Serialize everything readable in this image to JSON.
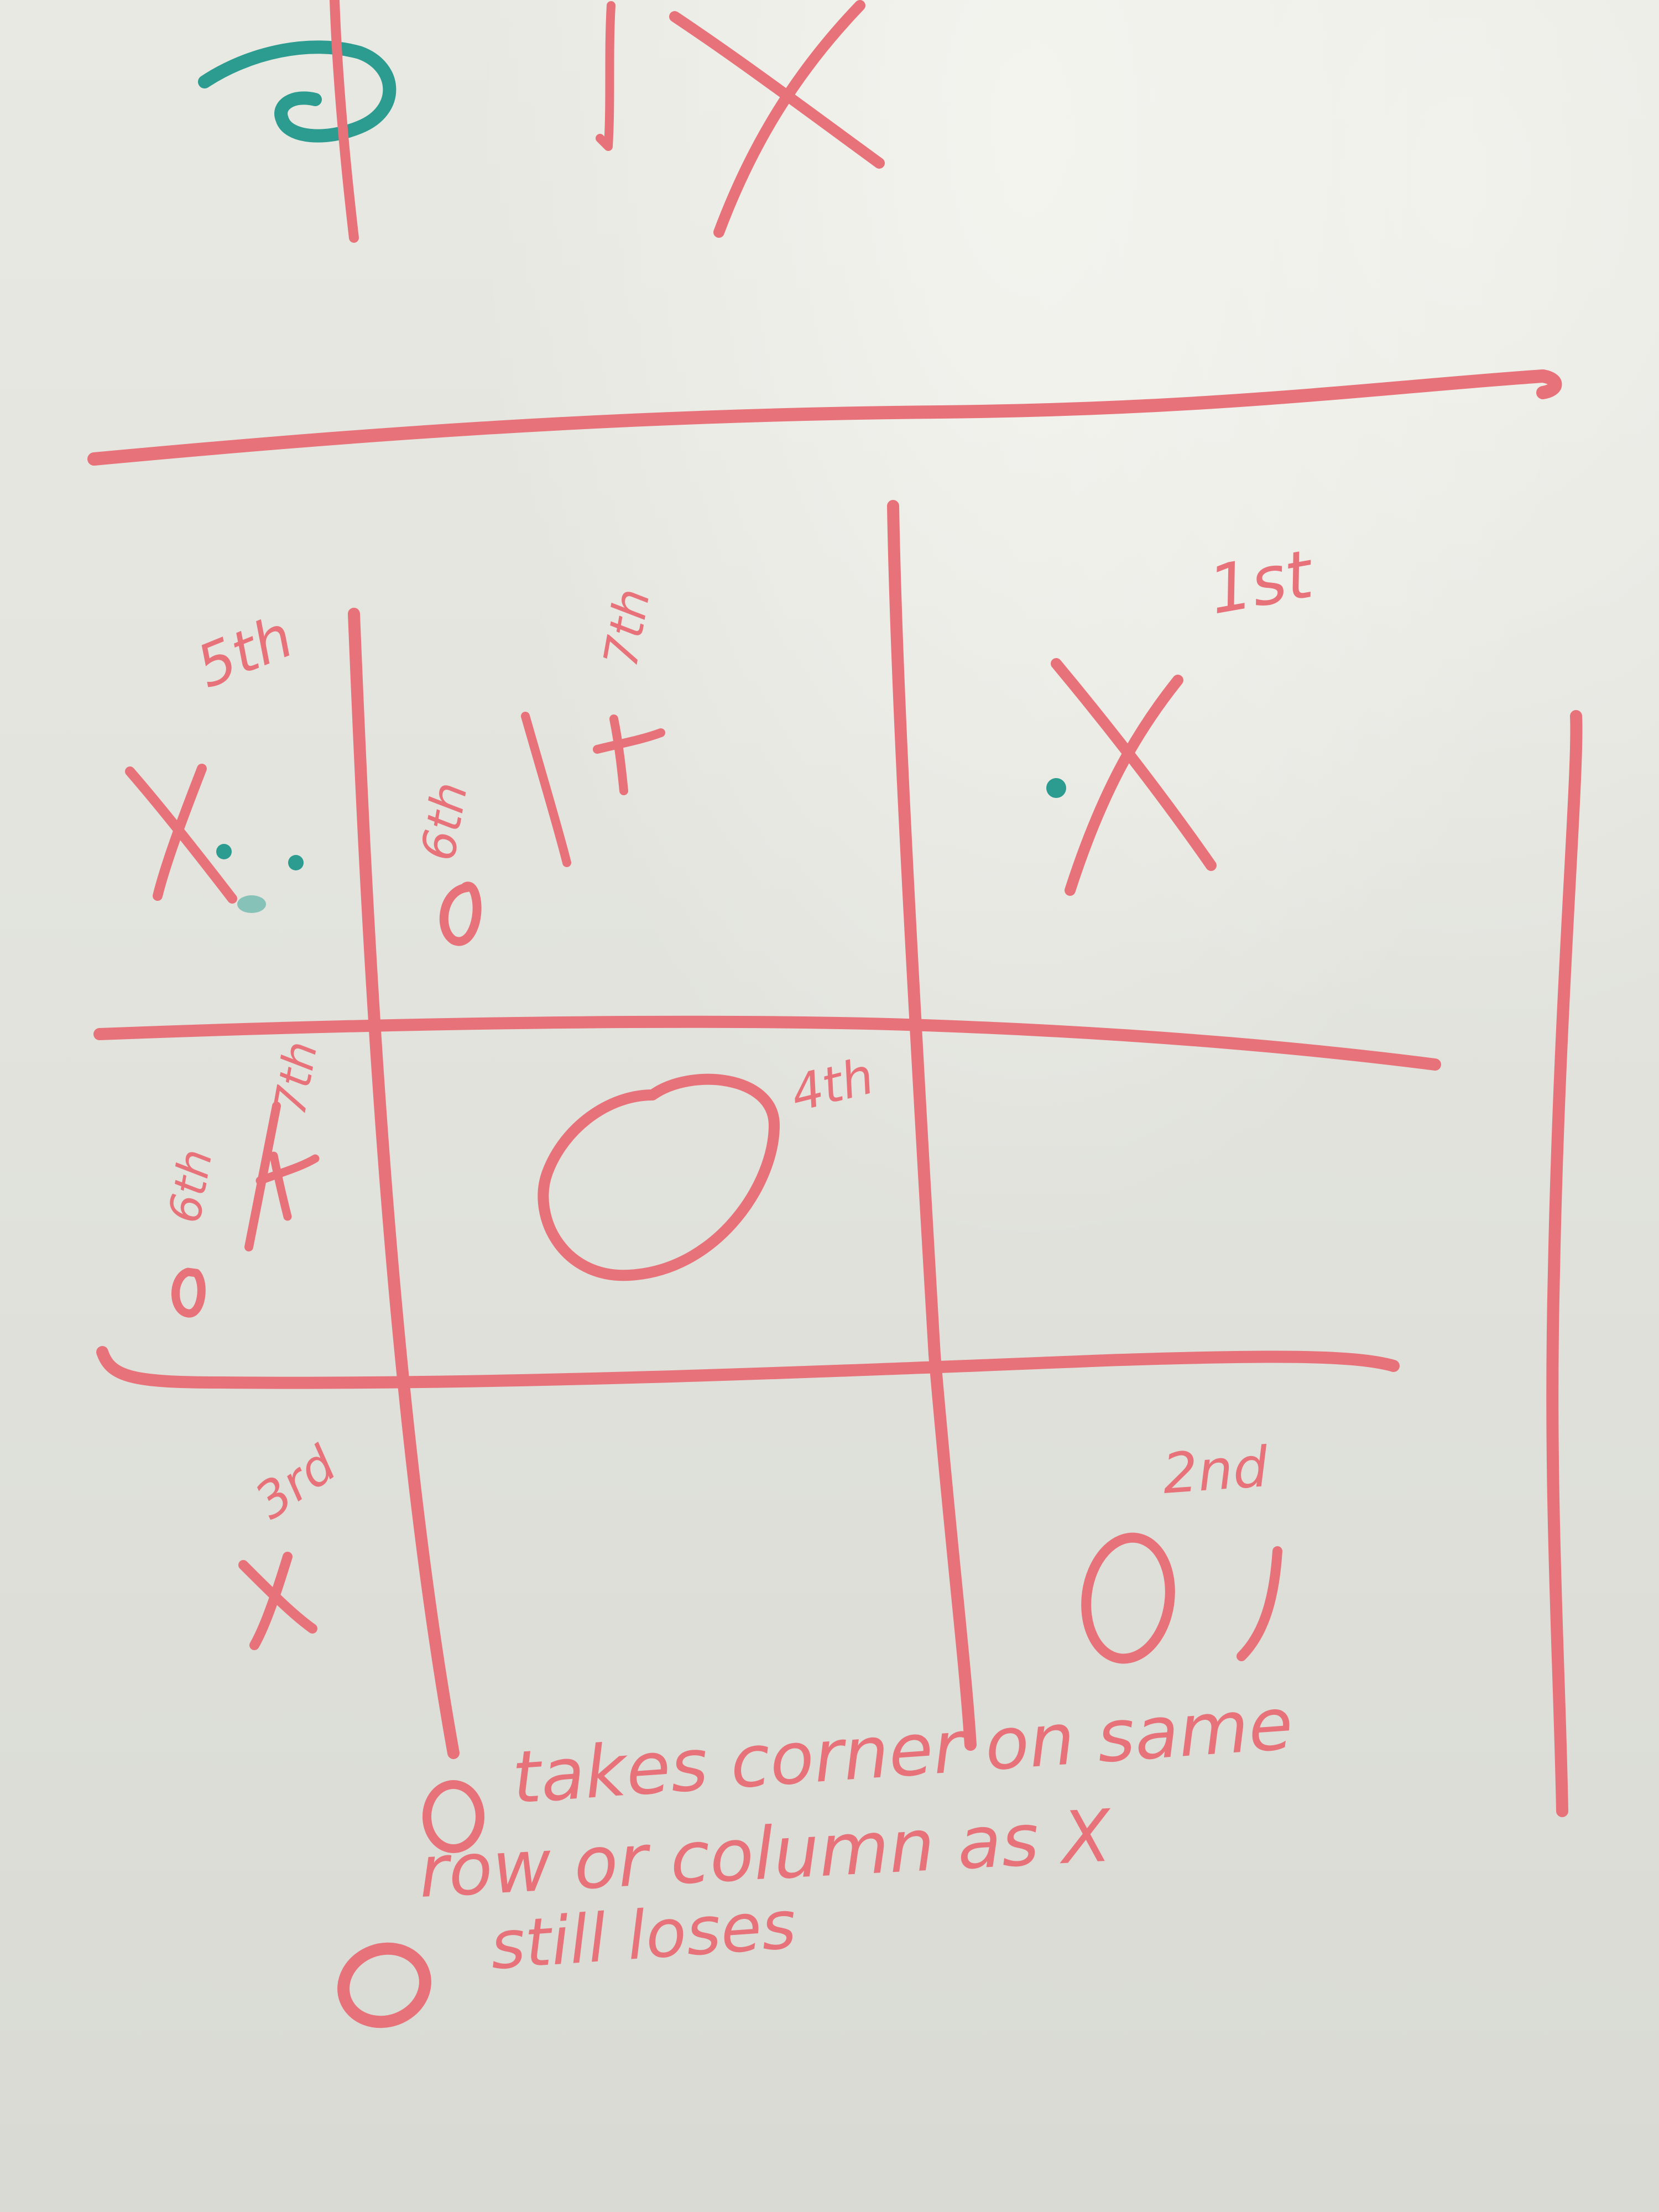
{
  "board": {
    "ink_color": "#e8727a",
    "accent_ink_color": "#2c9c90",
    "background_color": "#e6e6e0"
  },
  "labels": {
    "move_1": "1st",
    "move_2": "2nd",
    "move_3": "3rd",
    "move_4": "4th",
    "move_5": "5th",
    "move_6_top": "6th",
    "move_7_top": "7th",
    "move_6_mid": "6th",
    "move_7_mid": "7th"
  },
  "marks": {
    "x": "X",
    "o": "O"
  },
  "notes": {
    "line1": "takes corner on same",
    "line2": "row or column as X",
    "line3": "still loses"
  }
}
